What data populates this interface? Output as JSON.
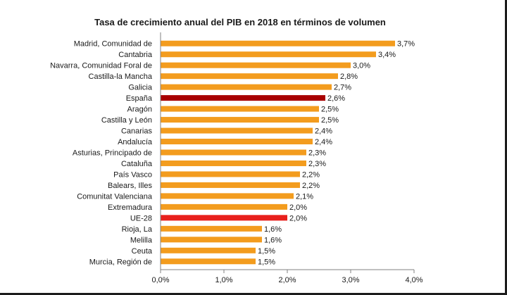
{
  "chart_data": {
    "type": "bar",
    "orientation": "horizontal",
    "title": "Tasa de crecimiento anual del PIB en 2018 en términos de volumen",
    "categories": [
      "Madrid, Comunidad de",
      "Cantabria",
      "Navarra, Comunidad Foral de",
      "Castilla-la Mancha",
      "Galicia",
      "España",
      "Aragón",
      "Castilla y León",
      "Canarias",
      "Andalucía",
      "Asturias, Principado de",
      "Cataluña",
      "País Vasco",
      "Balears, Illes",
      "Comunitat Valenciana",
      "Extremadura",
      "UE-28",
      "Rioja, La",
      "Melilla",
      "Ceuta",
      "Murcia, Región de"
    ],
    "values": [
      3.7,
      3.4,
      3.0,
      2.8,
      2.7,
      2.6,
      2.5,
      2.5,
      2.4,
      2.4,
      2.3,
      2.3,
      2.2,
      2.2,
      2.1,
      2.0,
      2.0,
      1.6,
      1.6,
      1.5,
      1.5
    ],
    "value_labels": [
      "3,7%",
      "3,4%",
      "3,0%",
      "2,8%",
      "2,7%",
      "2,6%",
      "2,5%",
      "2,5%",
      "2,4%",
      "2,4%",
      "2,3%",
      "2,3%",
      "2,2%",
      "2,2%",
      "2,1%",
      "2,0%",
      "2,0%",
      "1,6%",
      "1,6%",
      "1,5%",
      "1,5%"
    ],
    "bar_colors": [
      "#f39c1e",
      "#f39c1e",
      "#f39c1e",
      "#f39c1e",
      "#f39c1e",
      "#a80000",
      "#f39c1e",
      "#f39c1e",
      "#f39c1e",
      "#f39c1e",
      "#f39c1e",
      "#f39c1e",
      "#f39c1e",
      "#f39c1e",
      "#f39c1e",
      "#f39c1e",
      "#e8201c",
      "#f39c1e",
      "#f39c1e",
      "#f39c1e",
      "#f39c1e"
    ],
    "xlim": [
      0,
      4.0
    ],
    "x_ticks": [
      0,
      1,
      2,
      3,
      4
    ],
    "x_tick_labels": [
      "0,0%",
      "1,0%",
      "2,0%",
      "3,0%",
      "4,0%"
    ],
    "grid": false,
    "legend": "none"
  }
}
